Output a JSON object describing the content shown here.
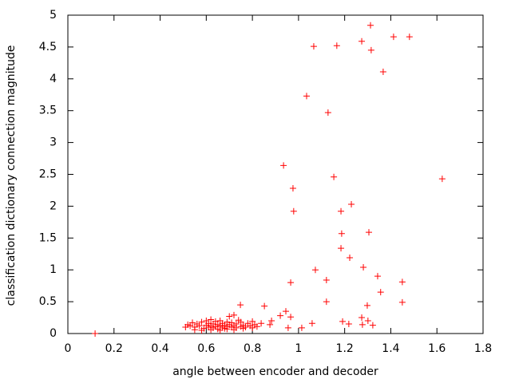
{
  "chart_data": {
    "type": "scatter",
    "xlabel": "angle between encoder and decoder",
    "ylabel": "classification dictionary connection magnitude",
    "color": "#ff0000",
    "xlim": [
      0,
      1.8
    ],
    "xticks": [
      0,
      0.2,
      0.4,
      0.6,
      0.8,
      1,
      1.2,
      1.4,
      1.6,
      1.8
    ],
    "ylim": [
      0,
      5
    ],
    "yticks": [
      0,
      0.5,
      1,
      1.5,
      2,
      2.5,
      3,
      3.5,
      4,
      4.5,
      5
    ],
    "x": [
      0.118,
      1.312,
      1.274,
      1.412,
      1.481,
      1.315,
      1.066,
      1.166,
      1.367,
      1.035,
      1.128,
      0.935,
      1.153,
      1.623,
      0.976,
      1.229,
      0.979,
      1.184,
      1.305,
      1.187,
      1.184,
      1.222,
      1.073,
      1.281,
      1.343,
      1.121,
      0.966,
      1.45,
      1.356,
      1.121,
      1.45,
      0.748,
      0.852,
      1.298,
      0.945,
      0.921,
      0.966,
      0.883,
      1.191,
      1.274,
      1.301,
      1.059,
      1.218,
      1.277,
      1.322,
      1.014,
      0.955,
      0.876,
      0.838,
      0.51,
      0.52,
      0.53,
      0.54,
      0.55,
      0.56,
      0.57,
      0.58,
      0.59,
      0.6,
      0.6,
      0.61,
      0.61,
      0.62,
      0.62,
      0.63,
      0.63,
      0.64,
      0.64,
      0.65,
      0.65,
      0.66,
      0.66,
      0.67,
      0.67,
      0.68,
      0.68,
      0.69,
      0.69,
      0.7,
      0.7,
      0.71,
      0.71,
      0.72,
      0.72,
      0.73,
      0.73,
      0.74,
      0.75,
      0.75,
      0.76,
      0.77,
      0.78,
      0.79,
      0.8,
      0.81,
      0.82,
      0.55,
      0.58,
      0.62,
      0.66,
      0.69,
      0.72,
      0.76,
      0.8
    ],
    "y": [
      0,
      4.84,
      4.59,
      4.66,
      4.66,
      4.45,
      4.51,
      4.52,
      4.11,
      3.73,
      3.47,
      2.64,
      2.46,
      2.43,
      2.28,
      2.03,
      1.92,
      1.92,
      1.59,
      1.57,
      1.34,
      1.19,
      1.0,
      1.04,
      0.9,
      0.84,
      0.8,
      0.81,
      0.65,
      0.5,
      0.49,
      0.45,
      0.43,
      0.44,
      0.35,
      0.28,
      0.26,
      0.2,
      0.19,
      0.25,
      0.2,
      0.16,
      0.15,
      0.14,
      0.13,
      0.09,
      0.09,
      0.14,
      0.16,
      0.1,
      0.14,
      0.12,
      0.17,
      0.1,
      0.15,
      0.12,
      0.18,
      0.08,
      0.13,
      0.2,
      0.1,
      0.16,
      0.12,
      0.22,
      0.09,
      0.15,
      0.11,
      0.19,
      0.14,
      0.07,
      0.12,
      0.2,
      0.1,
      0.16,
      0.13,
      0.08,
      0.18,
      0.11,
      0.14,
      0.27,
      0.1,
      0.17,
      0.12,
      0.29,
      0.09,
      0.15,
      0.21,
      0.11,
      0.18,
      0.13,
      0.1,
      0.16,
      0.12,
      0.19,
      0.14,
      0.11,
      0.06,
      0.05,
      0.06,
      0.05,
      0.07,
      0.06,
      0.08,
      0.09
    ]
  }
}
